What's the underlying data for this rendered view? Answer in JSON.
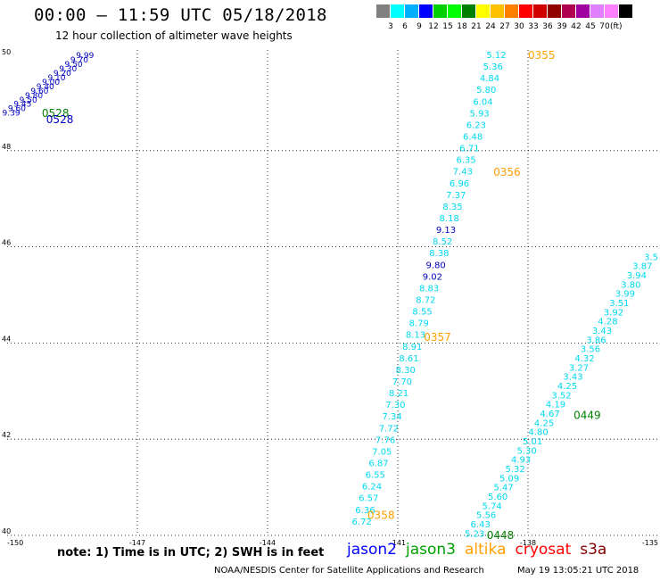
{
  "title": "00:00 – 11:59 UTC 05/18/2018",
  "subtitle": "12 hour collection of altimeter wave heights",
  "colorbar": {
    "unit": "(ft)",
    "colors": [
      "#808080",
      "#00ffff",
      "#00b0ff",
      "#0000ff",
      "#00d000",
      "#00ff00",
      "#008000",
      "#ffff00",
      "#ffc000",
      "#ff8000",
      "#ff0000",
      "#d00000",
      "#900000",
      "#b00050",
      "#a000a0",
      "#e080ff",
      "#ff80ff",
      "#000000"
    ],
    "labels": [
      "3",
      "6",
      "9",
      "12",
      "15",
      "18",
      "21",
      "24",
      "27",
      "30",
      "33",
      "36",
      "39",
      "42",
      "45",
      "70"
    ]
  },
  "map_axes": {
    "lon_ticks": [
      "-150",
      "-147",
      "-144",
      "-141",
      "-138",
      "-135"
    ],
    "lat_ticks": [
      "50",
      "48",
      "46",
      "44",
      "42",
      "40"
    ]
  },
  "tracks": [
    {
      "name": "track-a",
      "color": "#00d8f0",
      "start": [
        -138.5,
        50.0
      ],
      "end": [
        -141.6,
        40.3
      ],
      "values": [
        "5.12",
        "5.36",
        "4.84",
        "5.80",
        "6.04",
        "5.93",
        "6.23",
        "6.48",
        "6.71",
        "6.35",
        "7.43",
        "6.96",
        "7.37",
        "8.35",
        "8.18",
        "9.13",
        "8.52",
        "8.38",
        "9.80",
        "9.02",
        "8.83",
        "8.72",
        "8.55",
        "8.79",
        "8.13",
        "8.91",
        "8.61",
        "8.30",
        "7.70",
        "8.21",
        "7.30",
        "7.34",
        "7.72",
        "7.76",
        "7.05",
        "6.87",
        "6.55",
        "6.24",
        "6.57",
        "6.36",
        "6.72"
      ],
      "dark_values": [
        "9.13",
        "9.80",
        "9.02"
      ],
      "dark_color": "#0000c0",
      "time_labels": [
        {
          "text": "0355",
          "at": [
            -138.0,
            49.98
          ]
        },
        {
          "text": "0356",
          "at": [
            -138.8,
            47.55
          ]
        },
        {
          "text": "0357",
          "at": [
            -140.4,
            44.12
          ]
        },
        {
          "text": "0358",
          "at": [
            -141.7,
            40.42
          ]
        }
      ],
      "time_color": "#ffa000"
    },
    {
      "name": "track-b",
      "color": "#00d8f0",
      "start": [
        -135.0,
        45.8
      ],
      "end": [
        -139.0,
        40.05
      ],
      "values": [
        "3.5",
        "3.87",
        "3.94",
        "3.80",
        "3.99",
        "3.51",
        "3.92",
        "4.28",
        "3.43",
        "3.86",
        "3.56",
        "4.32",
        "3.27",
        "3.43",
        "4.25",
        "3.52",
        "4.19",
        "4.67",
        "4.25",
        "4.80",
        "5.01",
        "5.30",
        "4.93",
        "5.32",
        "5.09",
        "5.47",
        "5.60",
        "5.74",
        "5.56",
        "6.43",
        "5.23"
      ],
      "time_labels": [
        {
          "text": "0449",
          "at": [
            -136.95,
            42.5
          ]
        },
        {
          "text": "0448",
          "at": [
            -138.95,
            40.0
          ]
        }
      ],
      "time_color": "#008000"
    },
    {
      "name": "track-c",
      "color": "#0000c0",
      "start": [
        -148.0,
        50.0
      ],
      "end": [
        -149.7,
        48.8
      ],
      "values": [
        "9.99",
        "9.70",
        "9.50",
        "9.30",
        "9.20",
        "9.10",
        "9.00",
        "9.40",
        "9.60",
        "9.80",
        "9.50",
        "9.45",
        "9.60",
        "9.39"
      ],
      "time_labels": [
        {
          "text": "0528",
          "at": [
            -149.2,
            48.78
          ]
        },
        {
          "text": "0528",
          "at": [
            -149.1,
            48.65
          ]
        }
      ],
      "time_colors": [
        "#008000",
        "#0000c0"
      ]
    }
  ],
  "note": "note:  1) Time is in UTC;  2) SWH is in feet",
  "legend": [
    {
      "label": "jason2",
      "color": "#0000ff"
    },
    {
      "label": "jason3",
      "color": "#00a000"
    },
    {
      "label": "altika",
      "color": "#ffa000"
    },
    {
      "label": "cryosat",
      "color": "#ff0000"
    },
    {
      "label": "s3a",
      "color": "#800000"
    }
  ],
  "credit": "NOAA/NESDIS Center for Satellite Applications and Research",
  "timestamp": "May 19 13:05:21 UTC 2018"
}
